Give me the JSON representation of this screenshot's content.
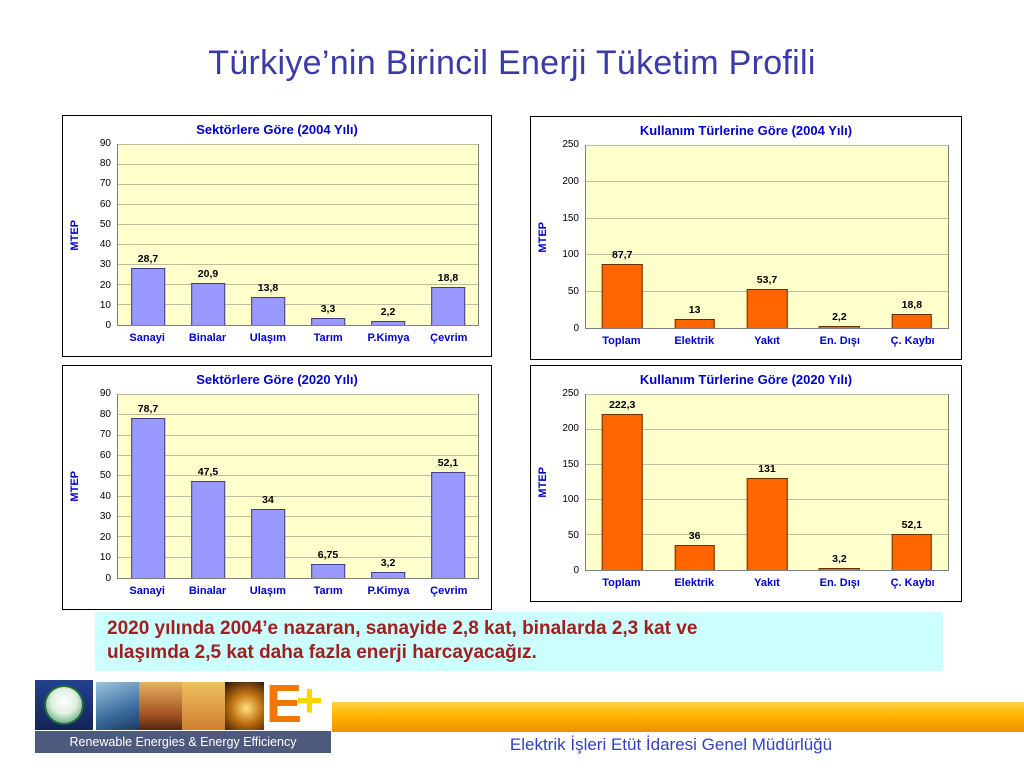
{
  "slide": {
    "title": "Türkiye’nin Birincil Enerji Tüketim Profili"
  },
  "note": {
    "line1": "2020 yılında 2004’e nazaran, sanayide 2,8 kat, binalarda 2,3 kat ve",
    "line2": "ulaşımda 2,5 kat daha fazla enerji harcayacağız."
  },
  "footer": {
    "banner": "Renewable Energies & Energy Efficiency",
    "org": "Elektrik İşleri Etüt İdaresi Genel Müdürlüğü",
    "eplus_e": "E",
    "eplus_plus": "+"
  },
  "colors": {
    "title_blue": "#3A3AA8",
    "chart_title_blue": "#0000CC",
    "sector_bar": "#9999FF",
    "sector_bar_border": "#404080",
    "usage_bar": "#FF6600",
    "usage_bar_border": "#663300",
    "plot_bg": "#FFFFCC",
    "note_bg": "#CCFFFF",
    "note_text": "#A02020",
    "accent_band": "#FFB400"
  },
  "chart_data": [
    {
      "id": "sectors-2004",
      "type": "bar",
      "title": "Sektörlere Göre (2004 Yılı)",
      "ylabel": "MTEP",
      "ylim": [
        0,
        90
      ],
      "ytick_step": 10,
      "grid": true,
      "legend": "none",
      "categories": [
        "Sanayi",
        "Binalar",
        "Ulaşım",
        "Tarım",
        "P.Kimya",
        "Çevrim"
      ],
      "values": [
        28.7,
        20.9,
        13.8,
        3.3,
        2.2,
        18.8
      ],
      "value_labels": [
        "28,7",
        "20,9",
        "13,8",
        "3,3",
        "2,2",
        "18,8"
      ],
      "bar_color_key": "sector"
    },
    {
      "id": "usage-2004",
      "type": "bar",
      "title": "Kullanım Türlerine Göre (2004 Yılı)",
      "ylabel": "MTEP",
      "ylim": [
        0,
        250
      ],
      "ytick_step": 50,
      "grid": true,
      "legend": "none",
      "categories": [
        "Toplam",
        "Elektrik",
        "Yakıt",
        "En. Dışı",
        "Ç. Kaybı"
      ],
      "values": [
        87.7,
        13,
        53.7,
        2.2,
        18.8
      ],
      "value_labels": [
        "87,7",
        "13",
        "53,7",
        "2,2",
        "18,8"
      ],
      "bar_color_key": "usage"
    },
    {
      "id": "sectors-2020",
      "type": "bar",
      "title": "Sektörlere Göre (2020 Yılı)",
      "ylabel": "MTEP",
      "ylim": [
        0,
        90
      ],
      "ytick_step": 10,
      "grid": true,
      "legend": "none",
      "categories": [
        "Sanayi",
        "Binalar",
        "Ulaşım",
        "Tarım",
        "P.Kimya",
        "Çevrim"
      ],
      "values": [
        78.7,
        47.5,
        34,
        6.75,
        3.2,
        52.1
      ],
      "value_labels": [
        "78,7",
        "47,5",
        "34",
        "6,75",
        "3,2",
        "52,1"
      ],
      "bar_color_key": "sector"
    },
    {
      "id": "usage-2020",
      "type": "bar",
      "title": "Kullanım Türlerine Göre (2020 Yılı)",
      "ylabel": "MTEP",
      "ylim": [
        0,
        250
      ],
      "ytick_step": 50,
      "grid": true,
      "legend": "none",
      "categories": [
        "Toplam",
        "Elektrik",
        "Yakıt",
        "En. Dışı",
        "Ç. Kaybı"
      ],
      "values": [
        222.3,
        36,
        131,
        3.2,
        52.1
      ],
      "value_labels": [
        "222,3",
        "36",
        "131",
        "3,2",
        "52,1"
      ],
      "bar_color_key": "usage"
    }
  ]
}
